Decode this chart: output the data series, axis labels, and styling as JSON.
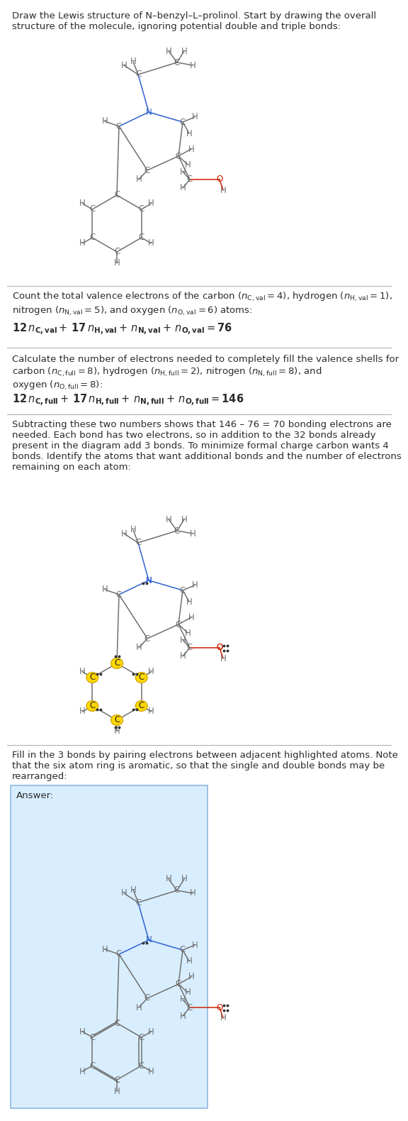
{
  "bg_color": "#ffffff",
  "text_color": "#2b2b2b",
  "bond_color": "#707070",
  "N_color": "#3060D0",
  "O_color": "#CC2200",
  "highlight_color": "#FFD700",
  "highlight_edge": "#CCA000",
  "dot_color": "#333333",
  "divider_color": "#aaaaaa",
  "answer_box_color": "#D8EEFF",
  "answer_box_edge": "#90B8E0",
  "title": "Draw the Lewis structure of N–benzyl–L–prolinol. Start by drawing the overall\nstructure of the molecule, ignoring potential double and triple bonds:",
  "s2_line1": "Count the total valence electrons of the carbon (",
  "s2_line1b": "= 4), hydrogen (",
  "s2_bold": "$12\\,n_\\mathrm{C,val} + 17\\,n_\\mathrm{H,val} + n_\\mathrm{N,val} + n_\\mathrm{O,val} = 76$",
  "s3_text": "Calculate the number of electrons needed to completely fill the valence shells for\ncarbon (",
  "s3_bold": "$12\\,n_\\mathrm{C,full} + 17\\,n_\\mathrm{H,full} + n_\\mathrm{N,full} + n_\\mathrm{O,full} = 146$",
  "s4_text": "Subtracting these two numbers shows that 146 – 76 = 70 bonding electrons are\nneeded. Each bond has two electrons, so in addition to the 32 bonds already\npresent in the diagram add 3 bonds. To minimize formal charge carbon wants 4\nbonds. Identify the atoms that want additional bonds and the number of electrons\nremaining on each atom:",
  "s5_text": "Fill in the 3 bonds by pairing electrons between adjacent highlighted atoms. Note\nthat the six atom ring is aromatic, so that the single and double bonds may be\nrearranged:",
  "answer_label": "Answer:"
}
